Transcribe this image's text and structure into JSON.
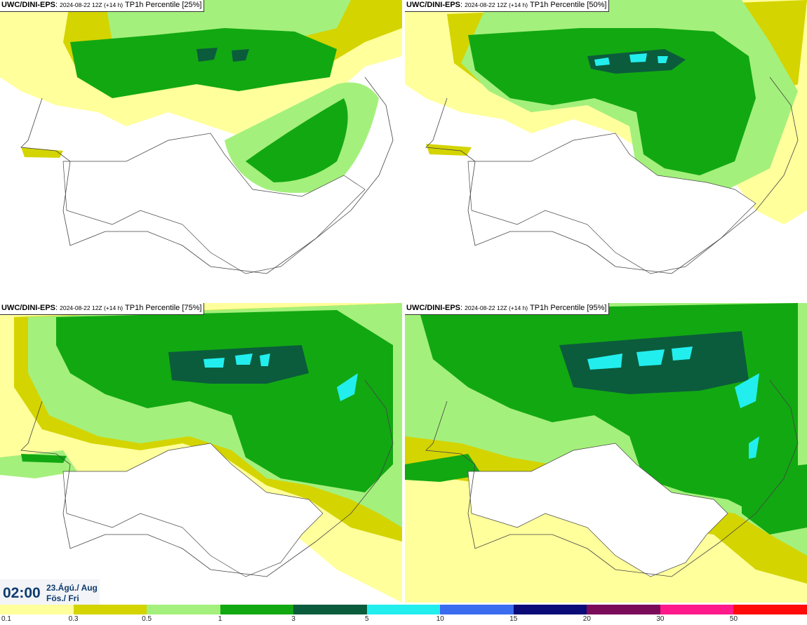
{
  "panels": [
    {
      "model": "UWC/DINI-EPS",
      "run": "2024-08-22 12Z (+14 h)",
      "field": "TP1h Percentile [25%]"
    },
    {
      "model": "UWC/DINI-EPS",
      "run": "2024-08-22 12Z (+14 h)",
      "field": "TP1h Percentile [50%]"
    },
    {
      "model": "UWC/DINI-EPS",
      "run": "2024-08-22 12Z (+14 h)",
      "field": "TP1h Percentile [75%]"
    },
    {
      "model": "UWC/DINI-EPS",
      "run": "2024-08-22 12Z (+14 h)",
      "field": "TP1h Percentile [95%]"
    }
  ],
  "valid_time": {
    "clock": "02:00",
    "date": "23.Ágú./ Aug",
    "weekday": "Fös./ Fri"
  },
  "legend": {
    "ticks": [
      "0.1",
      "0.3",
      "0.5",
      "1",
      "3",
      "5",
      "10",
      "15",
      "20",
      "30",
      "50"
    ],
    "colors": [
      "#ffff9c",
      "#d4d400",
      "#a4f07c",
      "#12a812",
      "#0b5c3c",
      "#22eeee",
      "#3a6cf0",
      "#0a0a78",
      "#7a0a5a",
      "#ff1a8c",
      "#ff0a0a"
    ]
  },
  "map_colors": {
    "c1": "#ffff9c",
    "c2": "#d4d400",
    "c3": "#a4f07c",
    "c4": "#12a812",
    "c5": "#0b5c3c",
    "c6": "#22eeee",
    "coast": "#444444"
  }
}
